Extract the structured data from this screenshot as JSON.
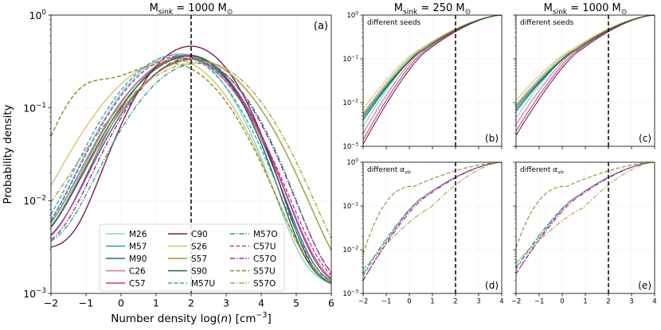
{
  "colors": {
    "M26": "#7fd3d6",
    "M57": "#2aa198",
    "M90": "#1f6f8b",
    "C26": "#d9738c",
    "C57": "#c2389a",
    "C90": "#7a1f4f",
    "S26": "#d8c46a",
    "S57": "#9a9a3a",
    "S90": "#1a6b3a",
    "M57U": "#3aa7b5",
    "M57O": "#2f9e8f",
    "C57U": "#c2389a",
    "C57O": "#9a2f7a",
    "S57U": "#8a8a2a",
    "S57O": "#a8a340"
  },
  "chart_data": [
    {
      "id": "a",
      "type": "line",
      "title": "M_sink = 1000 M⊙",
      "title_main": "M",
      "title_sub": "sink",
      "title_rest": " = 1000 M",
      "title_sun": "⊙",
      "panel_label": "(a)",
      "xlabel_prefix": "Number density log(",
      "xlabel_italic": "n",
      "xlabel_suffix": ") [cm",
      "xlabel_sup": "−3",
      "xlabel_end": "]",
      "ylabel": "Probability density",
      "xlim": [
        -2,
        6
      ],
      "ylim_log10": [
        -3,
        0
      ],
      "xticks": [
        "−2",
        "−1",
        "0",
        "1",
        "2",
        "3",
        "4",
        "5",
        "6"
      ],
      "yticks": [
        "10",
        "10",
        "10",
        "10"
      ],
      "ytick_exp": [
        "−3",
        "−2",
        "−1",
        "0"
      ],
      "vline_x": 2,
      "legend_location": "lower-center",
      "legend": [
        {
          "name": "M26",
          "style": "solid"
        },
        {
          "name": "M57",
          "style": "solid"
        },
        {
          "name": "M90",
          "style": "solid"
        },
        {
          "name": "C26",
          "style": "solid"
        },
        {
          "name": "C57",
          "style": "solid"
        },
        {
          "name": "C90",
          "style": "solid"
        },
        {
          "name": "S26",
          "style": "solid"
        },
        {
          "name": "S57",
          "style": "solid"
        },
        {
          "name": "S90",
          "style": "solid"
        },
        {
          "name": "M57U",
          "style": "dashed"
        },
        {
          "name": "M57O",
          "style": "dashdot"
        },
        {
          "name": "C57U",
          "style": "dashed"
        },
        {
          "name": "C57O",
          "style": "dashdot"
        },
        {
          "name": "S57U",
          "style": "dashed"
        },
        {
          "name": "S57O",
          "style": "dashdot"
        }
      ],
      "series_approx": "log-normal-like curves peaking near log(n)=1.5–2.5 with peak density 0.25–0.45"
    },
    {
      "id": "b",
      "type": "line",
      "title_main": "M",
      "title_sub": "sink",
      "title_rest": " = 250 M",
      "title_sun": "⊙",
      "panel_label": "(b)",
      "annotation": "different seeds",
      "xlim": [
        -2,
        4
      ],
      "ylim_log10": [
        -3,
        0
      ],
      "yticks": [
        "10",
        "10",
        "10",
        "10"
      ],
      "ytick_exp": [
        "−3",
        "−2",
        "−1",
        "0"
      ],
      "vline_x": 2,
      "series": [
        "M26",
        "M57",
        "M90",
        "C26",
        "C57",
        "C90",
        "S26",
        "S57",
        "S90"
      ]
    },
    {
      "id": "c",
      "type": "line",
      "title_main": "M",
      "title_sub": "sink",
      "title_rest": " = 1000 M",
      "title_sun": "⊙",
      "panel_label": "(c)",
      "annotation": "different seeds",
      "xlim": [
        -2,
        4
      ],
      "ylim_log10": [
        -3,
        0
      ],
      "vline_x": 2,
      "series": [
        "M26",
        "M57",
        "M90",
        "C26",
        "C57",
        "C90",
        "S26",
        "S57",
        "S90"
      ]
    },
    {
      "id": "d",
      "type": "line",
      "panel_label": "(d)",
      "annotation_prefix": "different ",
      "annotation_alpha": "α",
      "annotation_sub": "vir",
      "xlim": [
        -2,
        4
      ],
      "xticks": [
        "−2",
        "−1",
        "0",
        "1",
        "2",
        "3",
        "4"
      ],
      "ylim_log10": [
        -3,
        0
      ],
      "yticks": [
        "10",
        "10",
        "10",
        "10"
      ],
      "ytick_exp": [
        "−3",
        "−2",
        "−1",
        "0"
      ],
      "vline_x": 2,
      "series": [
        "M57U",
        "M57O",
        "C57U",
        "C57O",
        "S57U",
        "S57O"
      ]
    },
    {
      "id": "e",
      "type": "line",
      "panel_label": "(e)",
      "annotation_prefix": "different ",
      "annotation_alpha": "α",
      "annotation_sub": "vir",
      "xlim": [
        -2,
        4
      ],
      "xticks": [
        "−2",
        "−1",
        "0",
        "1",
        "2",
        "3",
        "4"
      ],
      "ylim_log10": [
        -3,
        0
      ],
      "vline_x": 2,
      "series": [
        "M57U",
        "M57O",
        "C57U",
        "C57O",
        "S57U",
        "S57O"
      ]
    }
  ]
}
